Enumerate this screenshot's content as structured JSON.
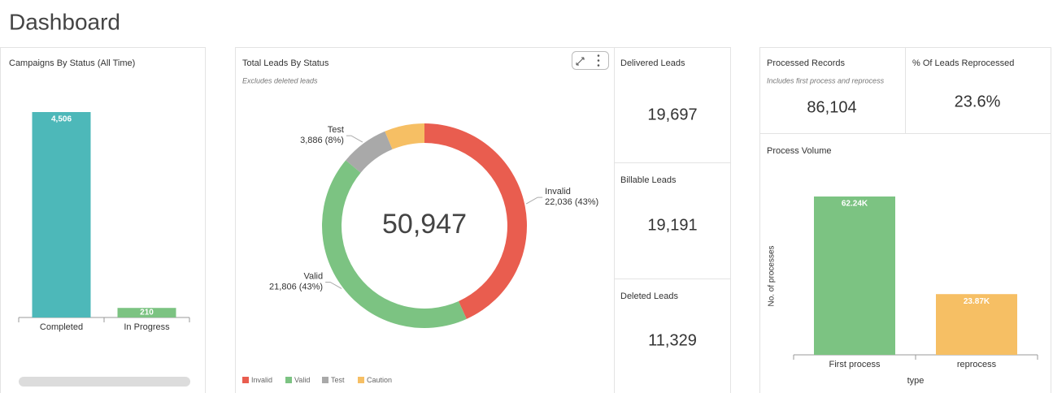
{
  "header": {
    "title": "Dashboard"
  },
  "chart_data": [
    {
      "type": "bar",
      "title": "Campaigns By Status (All Time)",
      "categories": [
        "Completed",
        "In Progress"
      ],
      "values": [
        4506,
        210
      ],
      "value_labels": [
        "4,506",
        "210"
      ],
      "colors": [
        "#4db8b9",
        "#7cc382"
      ]
    },
    {
      "type": "donut",
      "title": "Total Leads By Status",
      "subtitle": "Excludes deleted leads",
      "center_text": "50,947",
      "categories": [
        "Invalid",
        "Valid",
        "Test",
        "Caution"
      ],
      "values": [
        22036,
        21806,
        3886,
        3219
      ],
      "value_labels": [
        "22,036 (43%)",
        "21,806 (43%)",
        "3,886 (8%)",
        null
      ],
      "colors": [
        "#e95d4f",
        "#7cc382",
        "#a9a9a9",
        "#f6bf64"
      ],
      "legend": "bottom-left"
    },
    {
      "type": "bar",
      "title": "Process Volume",
      "xlabel": "type",
      "ylabel": "No. of processes",
      "categories": [
        "First process",
        "reprocess"
      ],
      "values": [
        62240,
        23870
      ],
      "value_labels": [
        "62.24K",
        "23.87K"
      ],
      "colors": [
        "#7cc382",
        "#f6bf64"
      ]
    }
  ],
  "cards": [
    {
      "title": "Delivered Leads",
      "value": "19,697"
    },
    {
      "title": "Billable Leads",
      "value": "19,191"
    },
    {
      "title": "Deleted Leads",
      "value": "11,329"
    },
    {
      "title": "Processed Records",
      "subtitle": "Includes first process and reprocess",
      "value": "86,104"
    },
    {
      "title": "% Of Leads Reprocessed",
      "value": "23.6%"
    }
  ]
}
